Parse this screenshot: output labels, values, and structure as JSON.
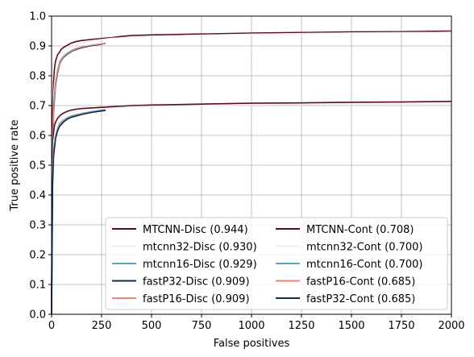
{
  "chart_data": {
    "type": "line",
    "title": "",
    "xlabel": "False positives",
    "ylabel": "True positive rate",
    "xlim": [
      0,
      2000
    ],
    "ylim": [
      0,
      1.0
    ],
    "xticks": [
      "0",
      "250",
      "500",
      "750",
      "1000",
      "1250",
      "1500",
      "1750",
      "2000"
    ],
    "yticks": [
      "0.0",
      "0.1",
      "0.2",
      "0.3",
      "0.4",
      "0.5",
      "0.6",
      "0.7",
      "0.8",
      "0.9",
      "1.0"
    ],
    "grid": true,
    "legend_placement": "lower-right",
    "legend_columns": 2,
    "series": [
      {
        "name": "MTCNN-Disc (0.944)",
        "color": "#5c0a24",
        "width": 1.6,
        "x": [
          0,
          3,
          6,
          10,
          15,
          20,
          30,
          40,
          50,
          60,
          80,
          100,
          125,
          150,
          200,
          250,
          300,
          350,
          400,
          500,
          750,
          1000,
          1250,
          1500,
          1750,
          2000
        ],
        "y": [
          0.0,
          0.55,
          0.7,
          0.78,
          0.83,
          0.85,
          0.87,
          0.88,
          0.89,
          0.895,
          0.903,
          0.91,
          0.915,
          0.918,
          0.922,
          0.925,
          0.928,
          0.932,
          0.935,
          0.937,
          0.94,
          0.943,
          0.945,
          0.947,
          0.948,
          0.95
        ]
      },
      {
        "name": "mtcnn32-Disc (0.930)",
        "color": "#f2eeee",
        "width": 1.2,
        "x": [
          0,
          5,
          10,
          20,
          30,
          50,
          80,
          120,
          150,
          200,
          300,
          500,
          1000,
          1500,
          2000
        ],
        "y": [
          0.0,
          0.6,
          0.74,
          0.82,
          0.85,
          0.875,
          0.89,
          0.903,
          0.91,
          0.918,
          0.926,
          0.933,
          0.94,
          0.944,
          0.946
        ]
      },
      {
        "name": "mtcnn16-Disc (0.929)",
        "color": "#5aa6c2",
        "width": 1.4,
        "x": [
          0,
          5,
          10,
          20,
          30,
          40,
          50,
          60,
          80,
          100,
          125,
          150,
          200,
          250,
          270
        ],
        "y": [
          0.0,
          0.55,
          0.7,
          0.78,
          0.82,
          0.845,
          0.858,
          0.866,
          0.877,
          0.885,
          0.892,
          0.896,
          0.902,
          0.906,
          0.908
        ]
      },
      {
        "name": "fastP32-Disc (0.909)",
        "color": "#0d2d52",
        "width": 1.6,
        "x": [
          0,
          5,
          10,
          20,
          30,
          40,
          50,
          60,
          80,
          100,
          125,
          150,
          200,
          250,
          270
        ],
        "y": [
          0.0,
          0.52,
          0.68,
          0.77,
          0.81,
          0.84,
          0.853,
          0.862,
          0.873,
          0.882,
          0.889,
          0.894,
          0.901,
          0.906,
          0.909
        ]
      },
      {
        "name": "fastP16-Disc (0.909)",
        "color": "#e08a72",
        "width": 1.4,
        "x": [
          0,
          5,
          10,
          20,
          30,
          40,
          50,
          60,
          80,
          100,
          125,
          150,
          200,
          250,
          270
        ],
        "y": [
          0.0,
          0.53,
          0.69,
          0.775,
          0.815,
          0.842,
          0.855,
          0.864,
          0.875,
          0.884,
          0.891,
          0.896,
          0.903,
          0.907,
          0.909
        ]
      },
      {
        "name": "MTCNN-Cont (0.708)",
        "color": "#5c0a24",
        "width": 1.6,
        "x": [
          0,
          3,
          6,
          10,
          15,
          20,
          30,
          40,
          50,
          60,
          80,
          100,
          125,
          150,
          200,
          250,
          300,
          350,
          400,
          500,
          750,
          1000,
          1250,
          1500,
          1750,
          2000
        ],
        "y": [
          0.0,
          0.45,
          0.55,
          0.61,
          0.635,
          0.645,
          0.657,
          0.665,
          0.671,
          0.675,
          0.681,
          0.685,
          0.688,
          0.69,
          0.692,
          0.694,
          0.696,
          0.698,
          0.7,
          0.702,
          0.705,
          0.708,
          0.709,
          0.711,
          0.712,
          0.714
        ]
      },
      {
        "name": "mtcnn32-Cont (0.700)",
        "color": "#f2eeee",
        "width": 1.2,
        "x": [
          0,
          5,
          10,
          20,
          40,
          80,
          120,
          200,
          300,
          500,
          1000,
          1500,
          2000
        ],
        "y": [
          0.0,
          0.5,
          0.58,
          0.63,
          0.655,
          0.672,
          0.68,
          0.687,
          0.692,
          0.697,
          0.702,
          0.705,
          0.706
        ]
      },
      {
        "name": "mtcnn16-Cont (0.700)",
        "color": "#5aa6c2",
        "width": 1.4,
        "x": [
          0,
          5,
          10,
          20,
          30,
          40,
          60,
          80,
          100,
          150,
          200,
          250,
          270
        ],
        "y": [
          0.0,
          0.45,
          0.55,
          0.6,
          0.625,
          0.64,
          0.652,
          0.66,
          0.666,
          0.674,
          0.68,
          0.685,
          0.686
        ]
      },
      {
        "name": "fastP16-Cont (0.685)",
        "color": "#e08a72",
        "width": 1.4,
        "x": [
          0,
          5,
          10,
          20,
          30,
          40,
          60,
          80,
          100,
          150,
          200,
          250,
          270
        ],
        "y": [
          0.0,
          0.44,
          0.54,
          0.595,
          0.62,
          0.635,
          0.648,
          0.657,
          0.663,
          0.672,
          0.678,
          0.683,
          0.685
        ]
      },
      {
        "name": "fastP32-Cont (0.685)",
        "color": "#0d2d52",
        "width": 1.6,
        "x": [
          0,
          5,
          10,
          20,
          30,
          40,
          60,
          80,
          100,
          150,
          200,
          250,
          270
        ],
        "y": [
          0.0,
          0.43,
          0.53,
          0.59,
          0.615,
          0.63,
          0.645,
          0.655,
          0.661,
          0.67,
          0.677,
          0.682,
          0.684
        ]
      }
    ],
    "legend_order": [
      0,
      1,
      2,
      3,
      4,
      5,
      6,
      7,
      8,
      9
    ]
  }
}
